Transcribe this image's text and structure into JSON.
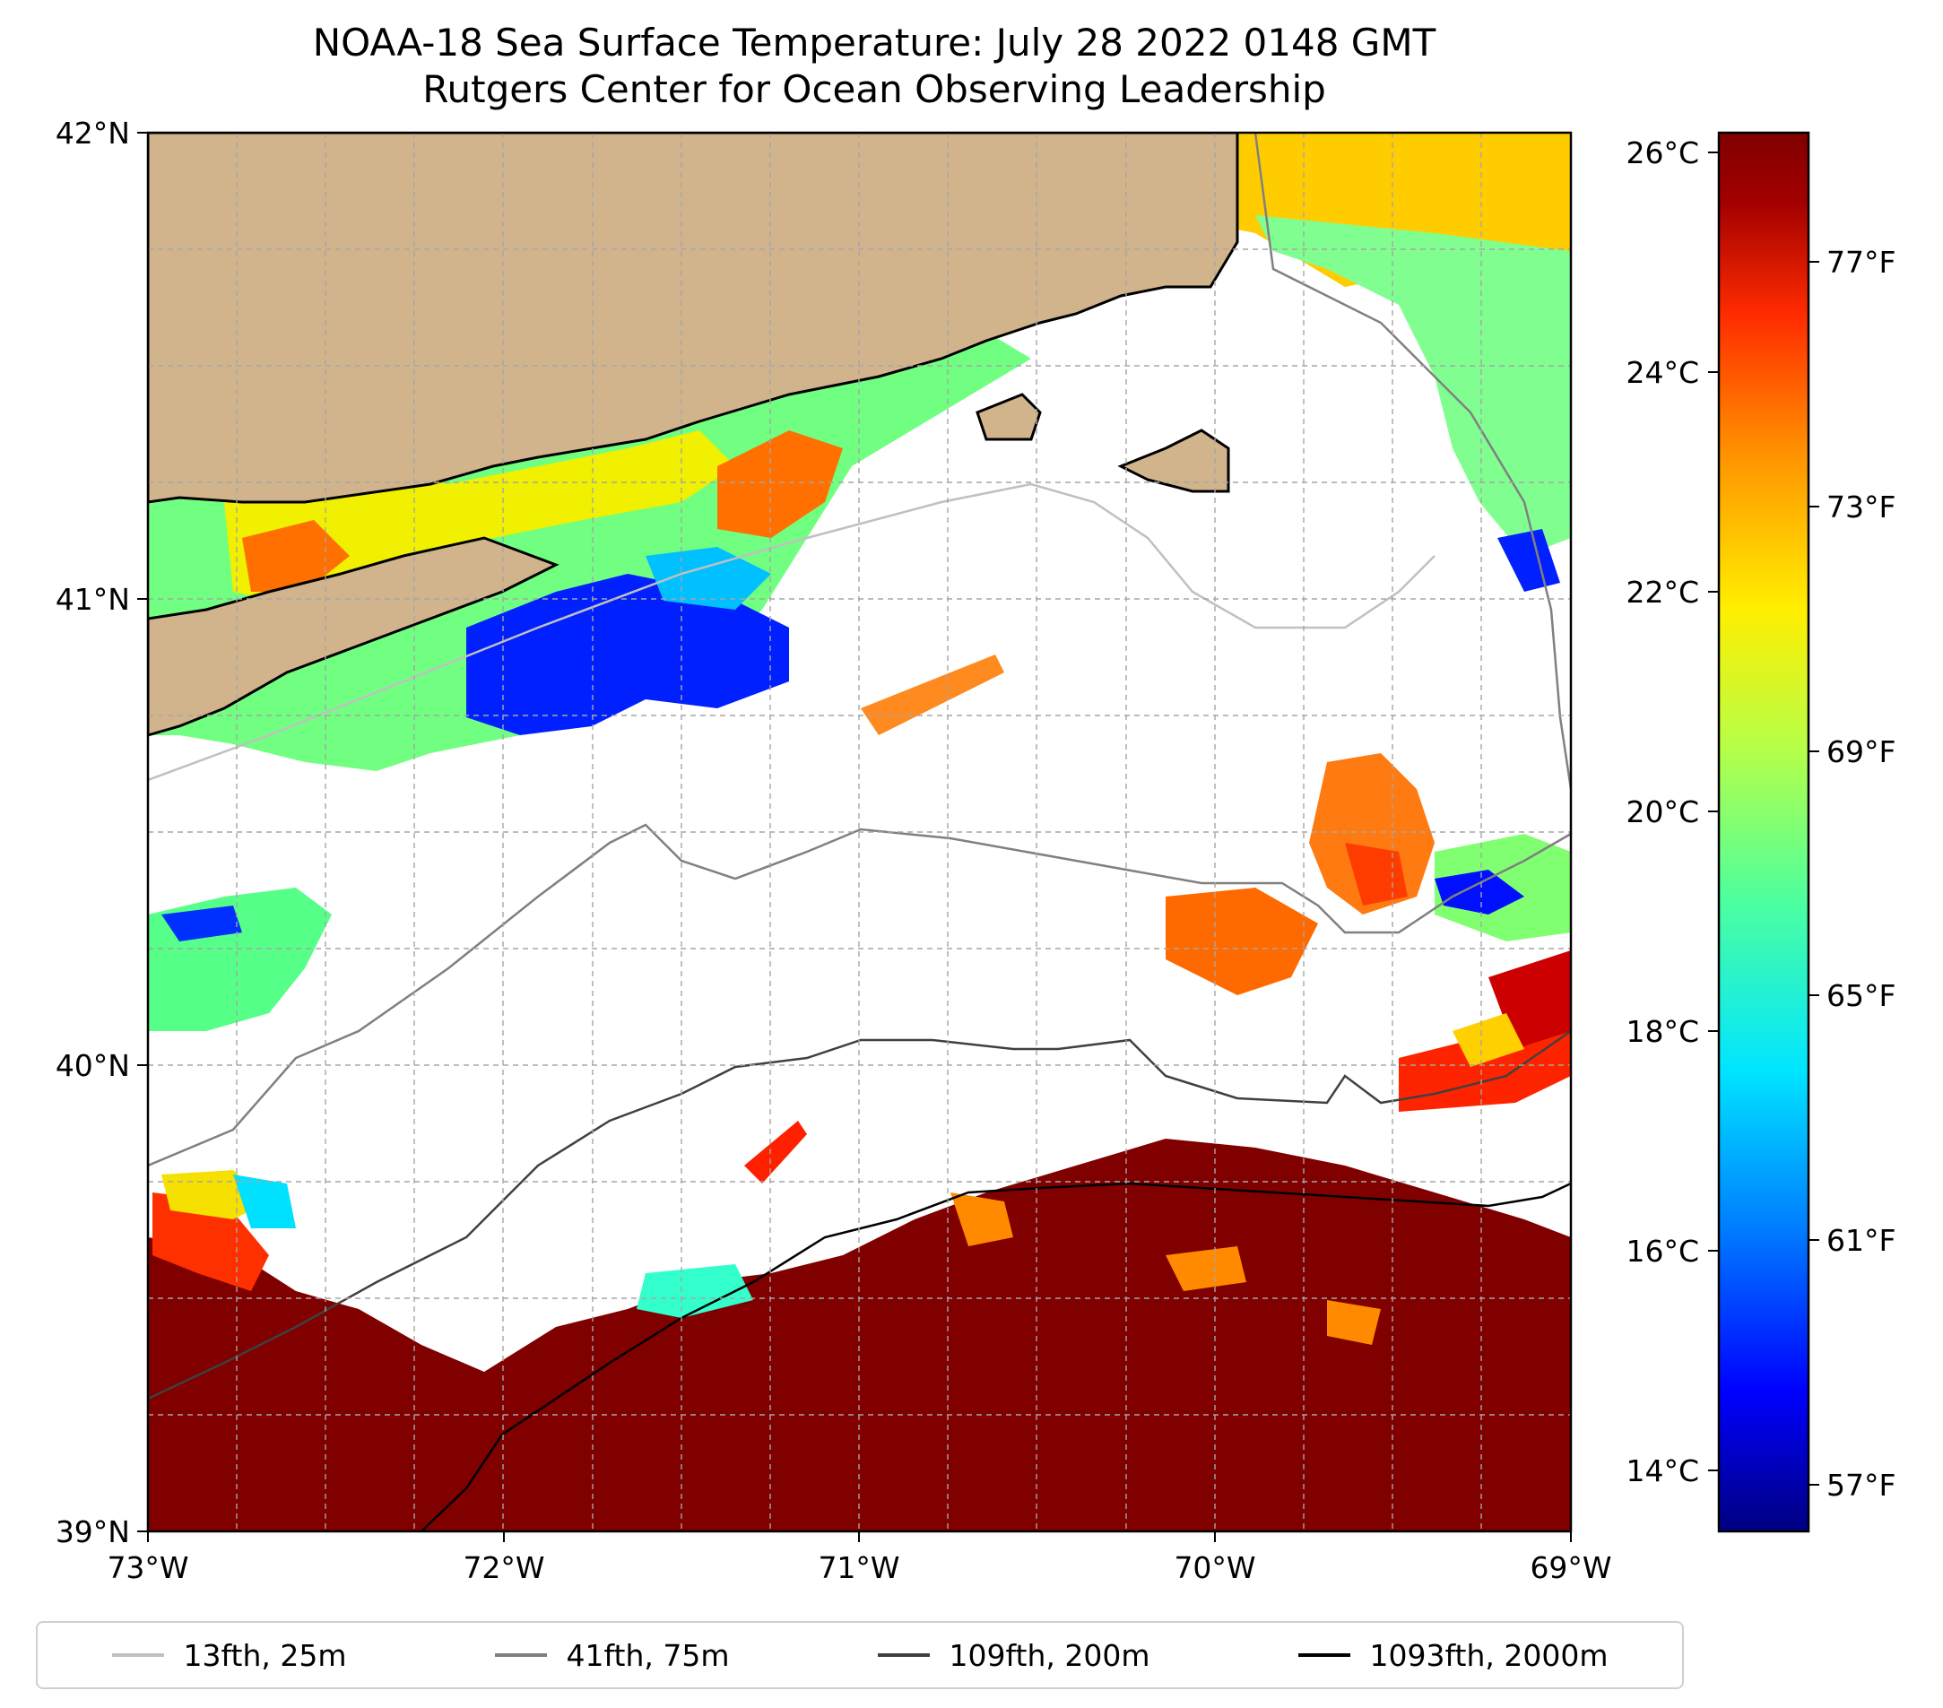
{
  "title": {
    "line1": "NOAA-18 Sea Surface Temperature: July 28 2022 0148 GMT",
    "line2": "Rutgers Center for Ocean Observing Leadership"
  },
  "axes": {
    "x_ticks": [
      "73°W",
      "72°W",
      "71°W",
      "70°W",
      "69°W"
    ],
    "y_ticks": [
      "42°N",
      "41°N",
      "40°N",
      "39°N"
    ]
  },
  "colorbar": {
    "celsius_ticks": [
      "26°C",
      "24°C",
      "22°C",
      "20°C",
      "18°C",
      "16°C",
      "14°C"
    ],
    "fahrenheit_ticks": [
      "77°F",
      "73°F",
      "69°F",
      "65°F",
      "61°F",
      "57°F"
    ],
    "colors": [
      "#000080",
      "#0000ff",
      "#0080ff",
      "#00e5ff",
      "#4cff9f",
      "#b6ff48",
      "#ffee00",
      "#ff9300",
      "#ff2b00",
      "#a30000",
      "#800000"
    ]
  },
  "legend": {
    "items": [
      {
        "label": "13fth, 25m",
        "color": "#c0c0c0"
      },
      {
        "label": "41fth, 75m",
        "color": "#808080"
      },
      {
        "label": "109fth, 200m",
        "color": "#404040"
      },
      {
        "label": "1093fth, 2000m",
        "color": "#000000"
      }
    ]
  },
  "land_color": "#d2b48c"
}
